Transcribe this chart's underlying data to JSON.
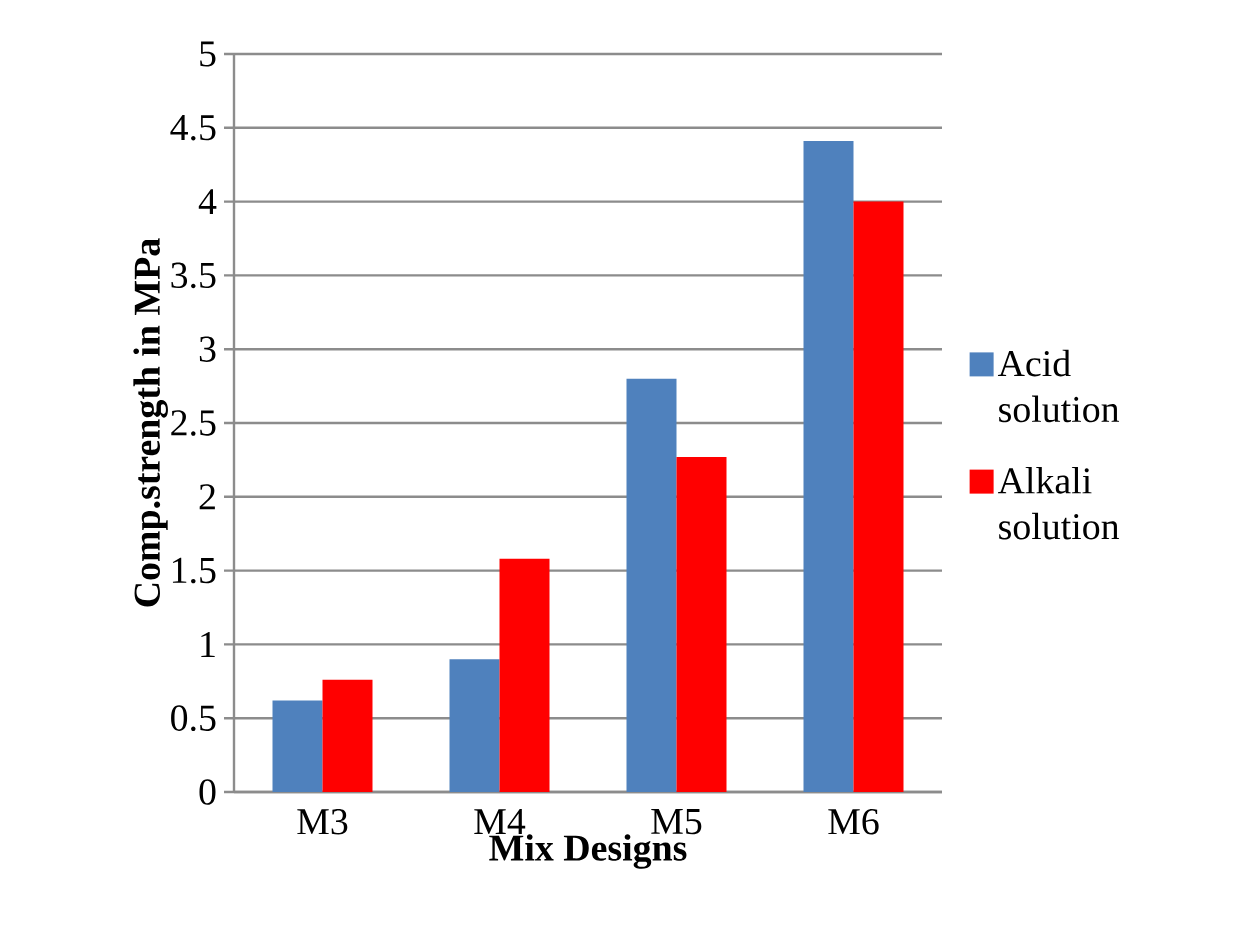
{
  "chart_data": {
    "type": "bar",
    "xlabel": "Mix Designs",
    "ylabel": "Comp.strength in MPa",
    "categories": [
      "M3",
      "M4",
      "M5",
      "M6"
    ],
    "series": [
      {
        "name": "Acid solution",
        "color": "#4f81bd",
        "values": [
          0.62,
          0.9,
          2.8,
          4.41
        ]
      },
      {
        "name": "Alkali solution",
        "color": "#ff0000",
        "values": [
          0.76,
          1.58,
          2.27,
          4.0
        ]
      }
    ],
    "ylim": [
      0,
      5
    ],
    "yticks": [
      0,
      0.5,
      1,
      1.5,
      2,
      2.5,
      3,
      3.5,
      4,
      4.5,
      5
    ],
    "grid": "y",
    "legend": "right"
  }
}
